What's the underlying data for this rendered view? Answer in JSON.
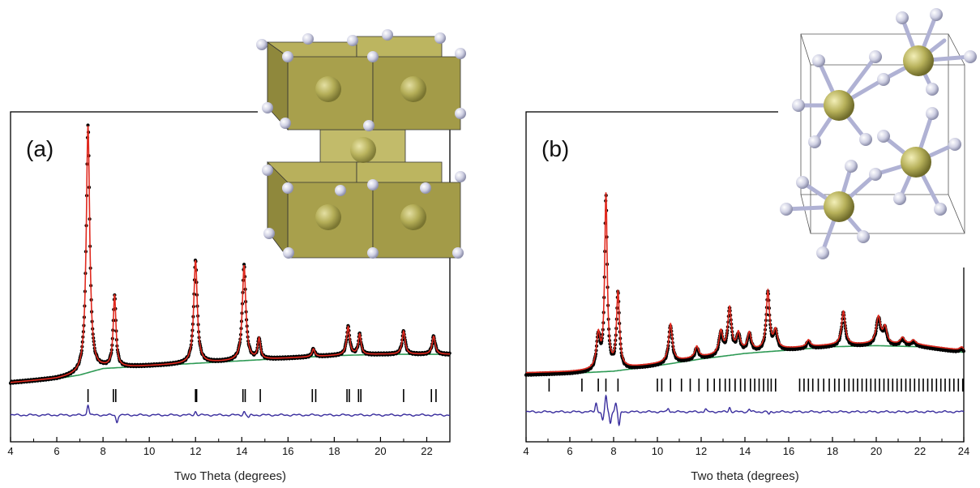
{
  "colors": {
    "observed": "#000000",
    "calculated": "#e02a1f",
    "background": "#2e9a55",
    "difference": "#3a2e9e",
    "reflections": "#000000",
    "polyhedron": "#b5ad55",
    "atom_metal": "#b7b15a",
    "atom_ligand": "#c9cbe0"
  },
  "chart_data": [
    {
      "type": "line",
      "panel_label": "(a)",
      "xlabel": "Two Theta (degrees)",
      "ylabel": "",
      "xlim": [
        4,
        23
      ],
      "ylim": [
        0,
        100
      ],
      "x_ticks": [
        4,
        6,
        8,
        10,
        12,
        14,
        16,
        18,
        20,
        22
      ],
      "grid": false,
      "legend": "none",
      "series": [
        {
          "role": "observed",
          "style": "points"
        },
        {
          "role": "calculated",
          "style": "line"
        },
        {
          "role": "background",
          "style": "line"
        },
        {
          "role": "difference",
          "style": "line"
        }
      ],
      "background_points": [
        [
          4,
          0
        ],
        [
          6,
          1.5
        ],
        [
          7,
          3
        ],
        [
          8,
          5.5
        ],
        [
          10,
          6.5
        ],
        [
          12,
          7.5
        ],
        [
          14,
          8.5
        ],
        [
          16,
          9.5
        ],
        [
          18,
          10.5
        ],
        [
          20,
          11
        ],
        [
          23,
          11
        ]
      ],
      "peaks": [
        {
          "x": 7.35,
          "height": 96,
          "width": 0.09
        },
        {
          "x": 8.5,
          "height": 28,
          "width": 0.07
        },
        {
          "x": 12.0,
          "height": 40,
          "width": 0.09
        },
        {
          "x": 14.1,
          "height": 37,
          "width": 0.09
        },
        {
          "x": 14.75,
          "height": 8,
          "width": 0.07
        },
        {
          "x": 17.1,
          "height": 3,
          "width": 0.07
        },
        {
          "x": 18.6,
          "height": 11,
          "width": 0.08
        },
        {
          "x": 19.1,
          "height": 8,
          "width": 0.07
        },
        {
          "x": 21.0,
          "height": 9,
          "width": 0.08
        },
        {
          "x": 22.3,
          "height": 7,
          "width": 0.08
        }
      ],
      "reflections": [
        7.35,
        8.45,
        8.55,
        12.0,
        12.05,
        14.05,
        14.15,
        14.8,
        17.05,
        17.2,
        18.55,
        18.65,
        19.05,
        19.15,
        21.0,
        22.2,
        22.4
      ],
      "difference_features": [
        {
          "x": 7.35,
          "amp": 6
        },
        {
          "x": 8.6,
          "amp": -4
        },
        {
          "x": 12.0,
          "amp": 2
        },
        {
          "x": 14.1,
          "amp": 2
        },
        {
          "x": 14.3,
          "amp": -1.5
        }
      ]
    },
    {
      "type": "line",
      "panel_label": "(b)",
      "xlabel": "Two theta (degrees)",
      "ylabel": "",
      "xlim": [
        4,
        24
      ],
      "ylim": [
        0,
        100
      ],
      "x_ticks": [
        4,
        6,
        8,
        10,
        12,
        14,
        16,
        18,
        20,
        22,
        24
      ],
      "grid": false,
      "legend": "none",
      "series": [
        {
          "role": "observed",
          "style": "points"
        },
        {
          "role": "calculated",
          "style": "line"
        },
        {
          "role": "background",
          "style": "line"
        },
        {
          "role": "difference",
          "style": "line"
        }
      ],
      "background_points": [
        [
          4,
          0
        ],
        [
          6,
          0.5
        ],
        [
          8,
          1.5
        ],
        [
          10,
          4
        ],
        [
          12,
          7
        ],
        [
          14,
          9.5
        ],
        [
          16,
          11
        ],
        [
          18,
          12.5
        ],
        [
          20,
          13
        ],
        [
          22,
          12.5
        ],
        [
          24,
          10
        ]
      ],
      "peaks": [
        {
          "x": 7.3,
          "height": 15,
          "width": 0.1
        },
        {
          "x": 7.65,
          "height": 78,
          "width": 0.07
        },
        {
          "x": 8.2,
          "height": 34,
          "width": 0.08
        },
        {
          "x": 10.6,
          "height": 17,
          "width": 0.1
        },
        {
          "x": 11.8,
          "height": 5,
          "width": 0.1
        },
        {
          "x": 12.9,
          "height": 10,
          "width": 0.1
        },
        {
          "x": 13.3,
          "height": 20,
          "width": 0.1
        },
        {
          "x": 13.7,
          "height": 8,
          "width": 0.1
        },
        {
          "x": 14.2,
          "height": 8,
          "width": 0.1
        },
        {
          "x": 15.05,
          "height": 26,
          "width": 0.09
        },
        {
          "x": 15.4,
          "height": 8,
          "width": 0.1
        },
        {
          "x": 16.9,
          "height": 3,
          "width": 0.1
        },
        {
          "x": 18.5,
          "height": 15,
          "width": 0.1
        },
        {
          "x": 20.1,
          "height": 12,
          "width": 0.12
        },
        {
          "x": 20.4,
          "height": 7,
          "width": 0.1
        },
        {
          "x": 21.2,
          "height": 3,
          "width": 0.12
        },
        {
          "x": 21.7,
          "height": 2,
          "width": 0.12
        },
        {
          "x": 23.9,
          "height": 1.5,
          "width": 0.1
        }
      ],
      "reflections": [
        5.05,
        6.55,
        7.3,
        7.65,
        8.2,
        10.0,
        10.2,
        10.6,
        11.1,
        11.5,
        11.9,
        12.3,
        12.6,
        12.85,
        13.1,
        13.3,
        13.55,
        13.8,
        14.0,
        14.25,
        14.45,
        14.65,
        14.85,
        15.05,
        15.2,
        15.4,
        16.5,
        16.7,
        16.9,
        17.1,
        17.35,
        17.6,
        17.85,
        18.1,
        18.3,
        18.55,
        18.75,
        18.95,
        19.15,
        19.35,
        19.55,
        19.75,
        19.95,
        20.15,
        20.35,
        20.55,
        20.75,
        20.95,
        21.15,
        21.35,
        21.55,
        21.75,
        21.95,
        22.15,
        22.35,
        22.55,
        22.75,
        22.95,
        23.15,
        23.35,
        23.55,
        23.75,
        23.95
      ],
      "difference_features": [
        {
          "x": 7.2,
          "amp": 5
        },
        {
          "x": 7.5,
          "amp": -5
        },
        {
          "x": 7.65,
          "amp": 9
        },
        {
          "x": 7.85,
          "amp": -6
        },
        {
          "x": 8.1,
          "amp": 5
        },
        {
          "x": 8.25,
          "amp": -8
        },
        {
          "x": 10.5,
          "amp": 2
        },
        {
          "x": 12.2,
          "amp": 1.5
        },
        {
          "x": 13.3,
          "amp": 2.5
        },
        {
          "x": 14.2,
          "amp": 1.5
        },
        {
          "x": 15.1,
          "amp": -1.5
        }
      ]
    }
  ]
}
